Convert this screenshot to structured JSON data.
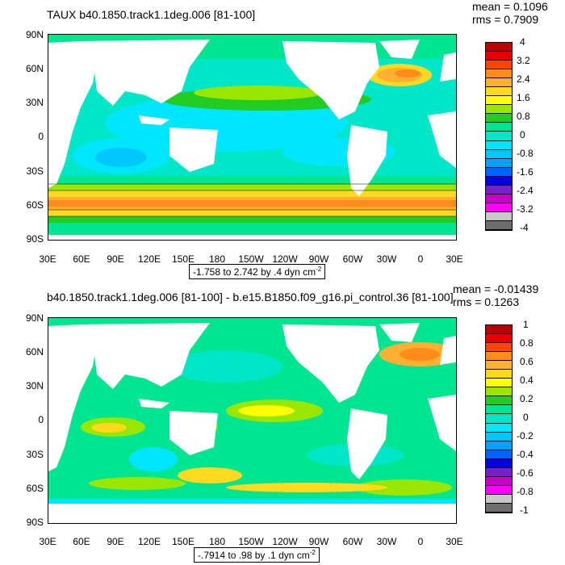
{
  "panel1": {
    "title": "TAUX b40.1850.track1.1deg.006 [81-100]",
    "mean": "mean = 0.1096",
    "rms": "rms = 0.7909",
    "contour_info": "-1.758 to 2.742 by .4 dyn cm",
    "contour_sup": "-2",
    "colorbar_labels": [
      "4",
      "3.2",
      "2.4",
      "1.6",
      "0.8",
      "0",
      "-0.8",
      "-1.6",
      "-2.4",
      "-3.2",
      "-4"
    ]
  },
  "panel2": {
    "title": "b40.1850.track1.1deg.006 [81-100] - b.e15.B1850.f09_g16.pi_control.36 [81-100]",
    "mean": "mean = -0.01439",
    "rms": "rms = 0.1263",
    "contour_info": "-.7914 to .98 by .1 dyn cm",
    "contour_sup": "-2",
    "colorbar_labels": [
      "1",
      "0.8",
      "0.6",
      "0.4",
      "0.2",
      "0",
      "-0.2",
      "-0.4",
      "-0.6",
      "-0.8",
      "-1"
    ]
  },
  "lat_labels": [
    "90N",
    "60N",
    "30N",
    "0",
    "30S",
    "60S",
    "90S"
  ],
  "lon_labels": [
    "30E",
    "60E",
    "90E",
    "120E",
    "150E",
    "180",
    "150W",
    "120W",
    "90W",
    "60W",
    "30W",
    "0",
    "30E"
  ],
  "colors": {
    "colorbar": [
      "#bb0000",
      "#e60000",
      "#ff4400",
      "#ff8c1a",
      "#ffb030",
      "#ffd820",
      "#ffff00",
      "#99e600",
      "#22cc22",
      "#00e690",
      "#00e6c8",
      "#00e6ff",
      "#00c8ff",
      "#00a0ff",
      "#0064ff",
      "#0000e6",
      "#7820c8",
      "#c800c8",
      "#ff00ff",
      "#c8c8c8",
      "#6e6e6e"
    ]
  }
}
